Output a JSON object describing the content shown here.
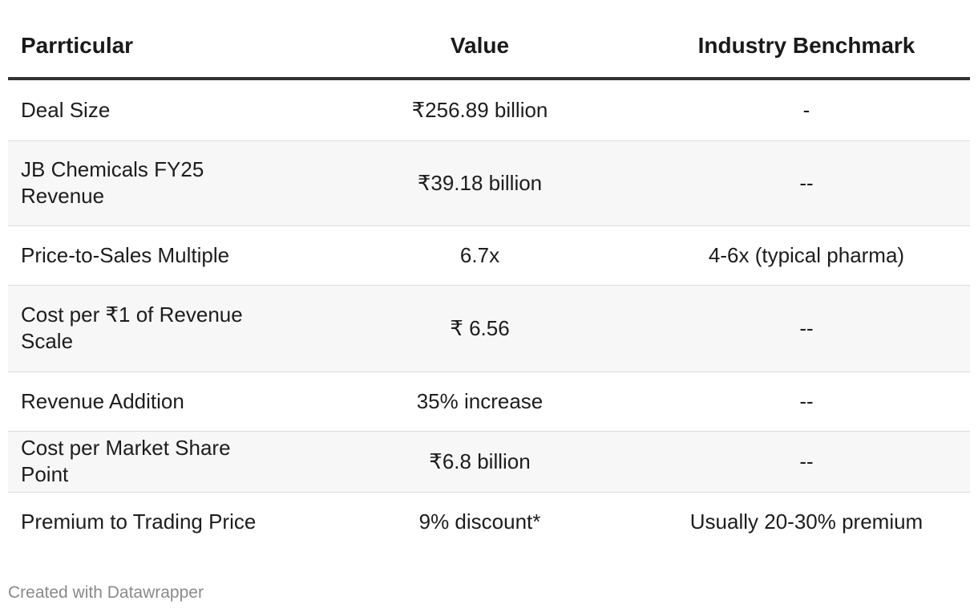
{
  "table": {
    "headers": [
      "Parrticular",
      "Value",
      "Industry Benchmark"
    ],
    "rows": [
      [
        "Deal Size",
        "₹256.89 billion",
        "-"
      ],
      [
        "JB Chemicals FY25 Revenue",
        "₹39.18 billion",
        "--"
      ],
      [
        "Price-to-Sales Multiple",
        "6.7x",
        "4-6x (typical pharma)"
      ],
      [
        "Cost per ₹1 of Revenue Scale",
        "₹ 6.56",
        "--"
      ],
      [
        "Revenue Addition",
        "35% increase",
        "--"
      ],
      [
        "Cost per Market Share Point",
        "₹6.8 billion",
        "--"
      ],
      [
        "Premium to Trading Price",
        "9% discount*",
        "Usually 20-30% premium"
      ]
    ]
  },
  "footer": {
    "credit": "Created with Datawrapper"
  }
}
